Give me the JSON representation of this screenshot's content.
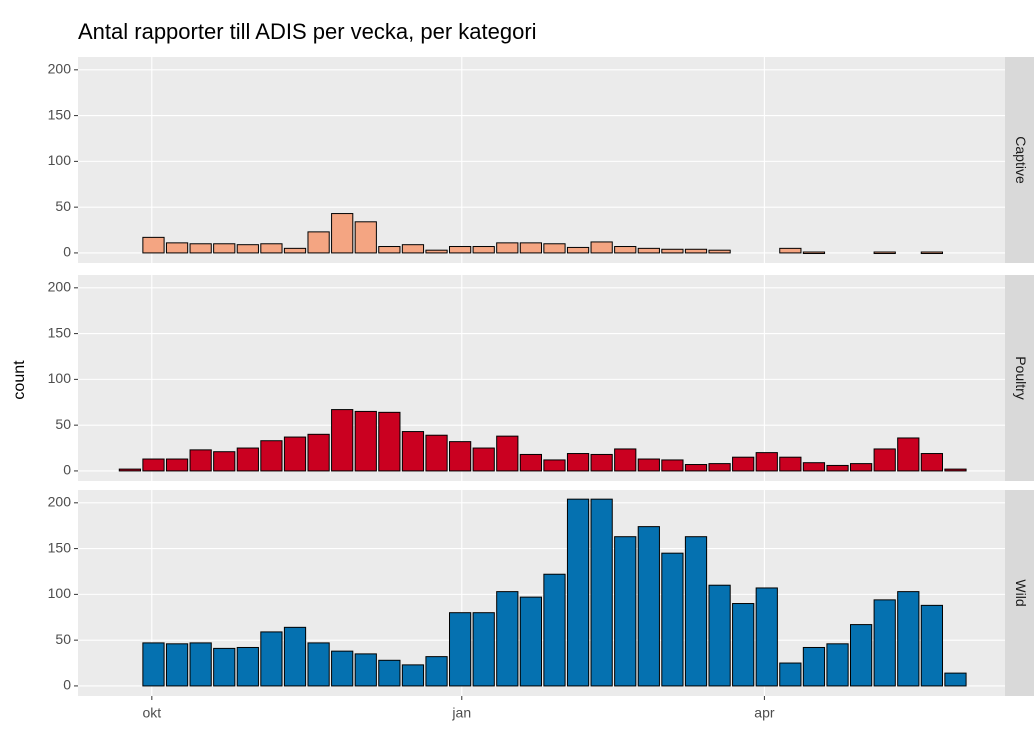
{
  "chart_data": {
    "type": "bar",
    "title": "Antal rapporter till ADIS per vecka, per kategori",
    "ylabel": "count",
    "x": [
      0,
      1,
      2,
      3,
      4,
      5,
      6,
      7,
      8,
      9,
      10,
      11,
      12,
      13,
      14,
      15,
      16,
      17,
      18,
      19,
      20,
      21,
      22,
      23,
      24,
      25,
      26,
      27,
      28,
      29,
      30,
      31,
      32,
      33,
      34,
      35
    ],
    "xlim": [
      -2.2,
      37.1
    ],
    "xticks": [
      {
        "value": 0.93,
        "label": "okt"
      },
      {
        "value": 14.07,
        "label": "jan"
      },
      {
        "value": 26.9,
        "label": "apr"
      }
    ],
    "ylim": [
      -11,
      214
    ],
    "yticks": [
      0,
      50,
      100,
      150,
      200
    ],
    "grid": true,
    "series": [
      {
        "name": "Captive",
        "color": "#f4a582",
        "values": [
          null,
          17,
          11,
          10,
          10,
          9,
          10,
          5,
          23,
          43,
          34,
          7,
          9,
          3,
          7,
          7,
          11,
          11,
          10,
          6,
          12,
          7,
          5,
          4,
          4,
          3,
          null,
          null,
          5,
          1,
          null,
          null,
          1,
          null,
          1,
          null
        ]
      },
      {
        "name": "Poultry",
        "color": "#ca0020",
        "values": [
          2,
          13,
          13,
          23,
          21,
          25,
          33,
          37,
          40,
          67,
          65,
          64,
          43,
          39,
          32,
          25,
          38,
          18,
          12,
          19,
          18,
          24,
          13,
          12,
          7,
          8,
          15,
          20,
          15,
          9,
          6,
          8,
          24,
          36,
          19,
          2
        ]
      },
      {
        "name": "Wild",
        "color": "#0571b0",
        "values": [
          null,
          47,
          46,
          47,
          41,
          42,
          59,
          64,
          47,
          38,
          35,
          28,
          23,
          32,
          80,
          80,
          103,
          97,
          122,
          204,
          204,
          163,
          174,
          145,
          163,
          110,
          90,
          107,
          25,
          42,
          46,
          67,
          94,
          103,
          88,
          14
        ]
      }
    ]
  }
}
